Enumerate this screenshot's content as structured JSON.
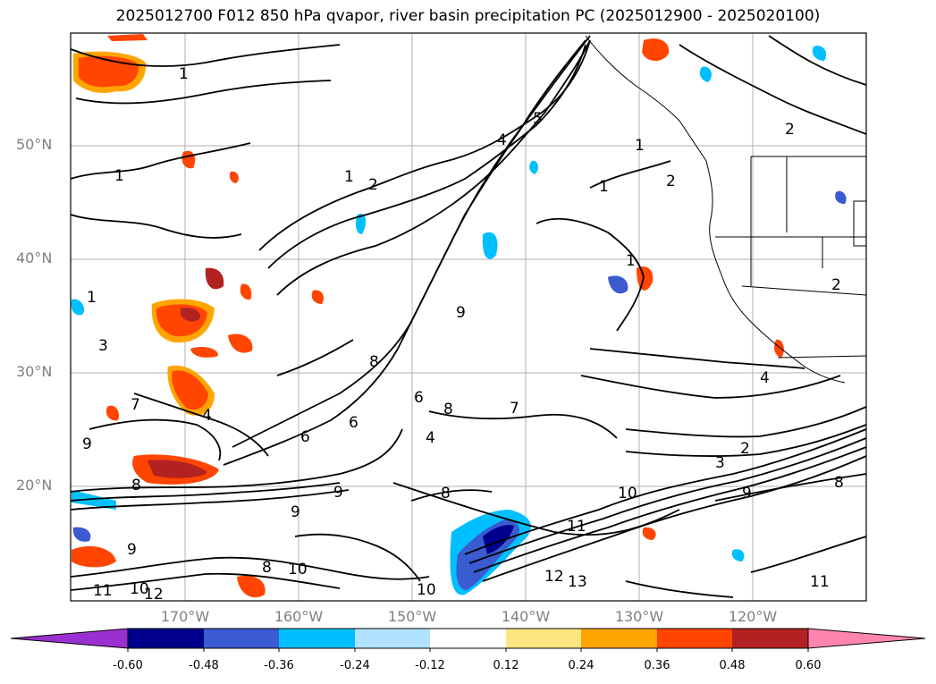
{
  "title": "2025012700 F012 850 hPa qvapor, river basin precipitation PC (2025012900 - 2025020100)",
  "map": {
    "lat_labels": [
      "50°N",
      "40°N",
      "30°N",
      "20°N"
    ],
    "lon_labels": [
      "170°W",
      "160°W",
      "150°W",
      "140°W",
      "130°W",
      "120°W"
    ],
    "contour_labels": [
      "1",
      "1",
      "1",
      "2",
      "2",
      "1",
      "2",
      "1",
      "1",
      "2",
      "1",
      "3",
      "4",
      "5",
      "6",
      "8",
      "9",
      "4",
      "9",
      "6",
      "8",
      "6",
      "7",
      "7",
      "8",
      "9",
      "4",
      "8",
      "9",
      "10",
      "11",
      "12",
      "13",
      "10",
      "11",
      "12",
      "8",
      "9",
      "10",
      "2",
      "3",
      "4",
      "9",
      "8",
      "10",
      "11"
    ],
    "colors": {
      "land_boundary": "#000000",
      "contour": "#000000",
      "grid": "#b0b0b0"
    }
  },
  "colorbar": {
    "ticks": [
      "-0.60",
      "-0.48",
      "-0.36",
      "-0.24",
      "-0.12",
      "0.12",
      "0.24",
      "0.36",
      "0.48",
      "0.60"
    ],
    "colors": [
      "#9b30d0",
      "#00008b",
      "#3b5bd0",
      "#00bfff",
      "#b0e2ff",
      "#ffffff",
      "#ffe680",
      "#ffa500",
      "#ff4500",
      "#b22222",
      "#ff85b0"
    ]
  }
}
